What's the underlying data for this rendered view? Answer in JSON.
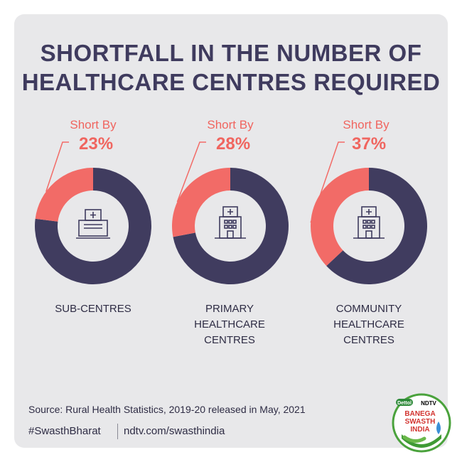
{
  "title": {
    "line1": "SHORTFALL IN THE NUMBER OF",
    "line2": "HEALTHCARE CENTRES REQUIRED"
  },
  "chart_data": {
    "type": "pie",
    "title": "SHORTFALL IN THE NUMBER OF HEALTHCARE CENTRES REQUIRED",
    "short_label": "Short By",
    "items": [
      {
        "category": [
          "SUB-CENTRES"
        ],
        "shortfall_pct": 23,
        "pct_label": "23%"
      },
      {
        "category": [
          "PRIMARY",
          "HEALTHCARE",
          "CENTRES"
        ],
        "shortfall_pct": 28,
        "pct_label": "28%"
      },
      {
        "category": [
          "COMMUNITY",
          "HEALTHCARE",
          "CENTRES"
        ],
        "shortfall_pct": 37,
        "pct_label": "37%"
      }
    ],
    "colors": {
      "shortfall": "#f26b67",
      "remaining": "#403c5f",
      "icon": "#3f3b5e",
      "background": "#e8e8ea"
    }
  },
  "footer": {
    "source": "Source: Rural Health Statistics, 2019-20 released in May, 2021",
    "hashtag": "#SwasthBharat",
    "site": "ndtv.com/swasthindia"
  },
  "logo": {
    "dettol": "Dettol",
    "ndtv": "NDTV",
    "line1": "BANEGA",
    "line2": "SWASTH",
    "line3": "INDIA"
  }
}
